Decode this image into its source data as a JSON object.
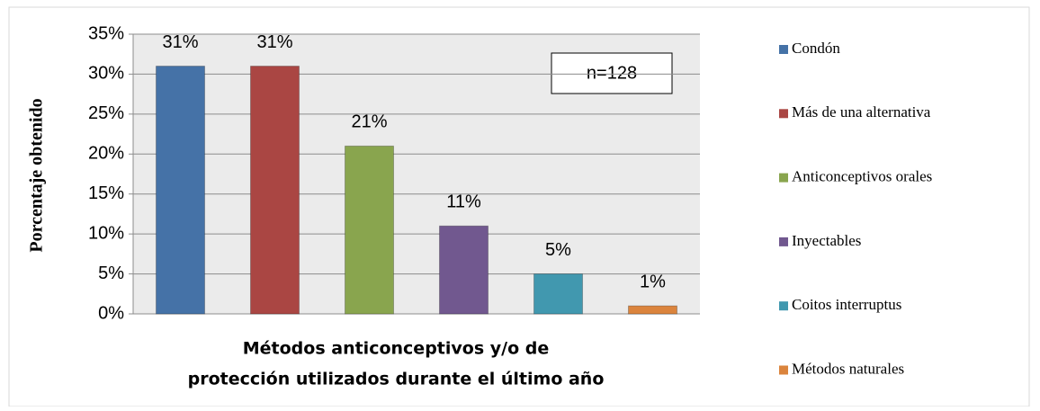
{
  "chart_data": {
    "type": "bar",
    "categories": [
      "Condón",
      "Más de una alternativa",
      "Anticonceptivos orales",
      "Inyectables",
      "Coitos interruptus",
      "Métodos naturales"
    ],
    "values": [
      31,
      31,
      21,
      11,
      5,
      1
    ],
    "value_labels": [
      "31%",
      "31%",
      "21%",
      "11%",
      "5%",
      "1%"
    ],
    "colors": [
      "#4572a7",
      "#aa4643",
      "#89a54e",
      "#71588f",
      "#4198af",
      "#db843d"
    ],
    "ylim": [
      0,
      35
    ],
    "yticks": [
      {
        "value": 0,
        "label": "0%"
      },
      {
        "value": 5,
        "label": "5%"
      },
      {
        "value": 10,
        "label": "10%"
      },
      {
        "value": 15,
        "label": "15%"
      },
      {
        "value": 20,
        "label": "20%"
      },
      {
        "value": 25,
        "label": "25%"
      },
      {
        "value": 30,
        "label": "30%"
      },
      {
        "value": 35,
        "label": "35%"
      }
    ],
    "ylabel": "Porcentaje obtenido",
    "xlabel": [
      "Métodos anticonceptivos y/o de",
      "protección utilizados durante el último año"
    ],
    "annotation": "n=128",
    "grid": true,
    "legend": "right"
  }
}
